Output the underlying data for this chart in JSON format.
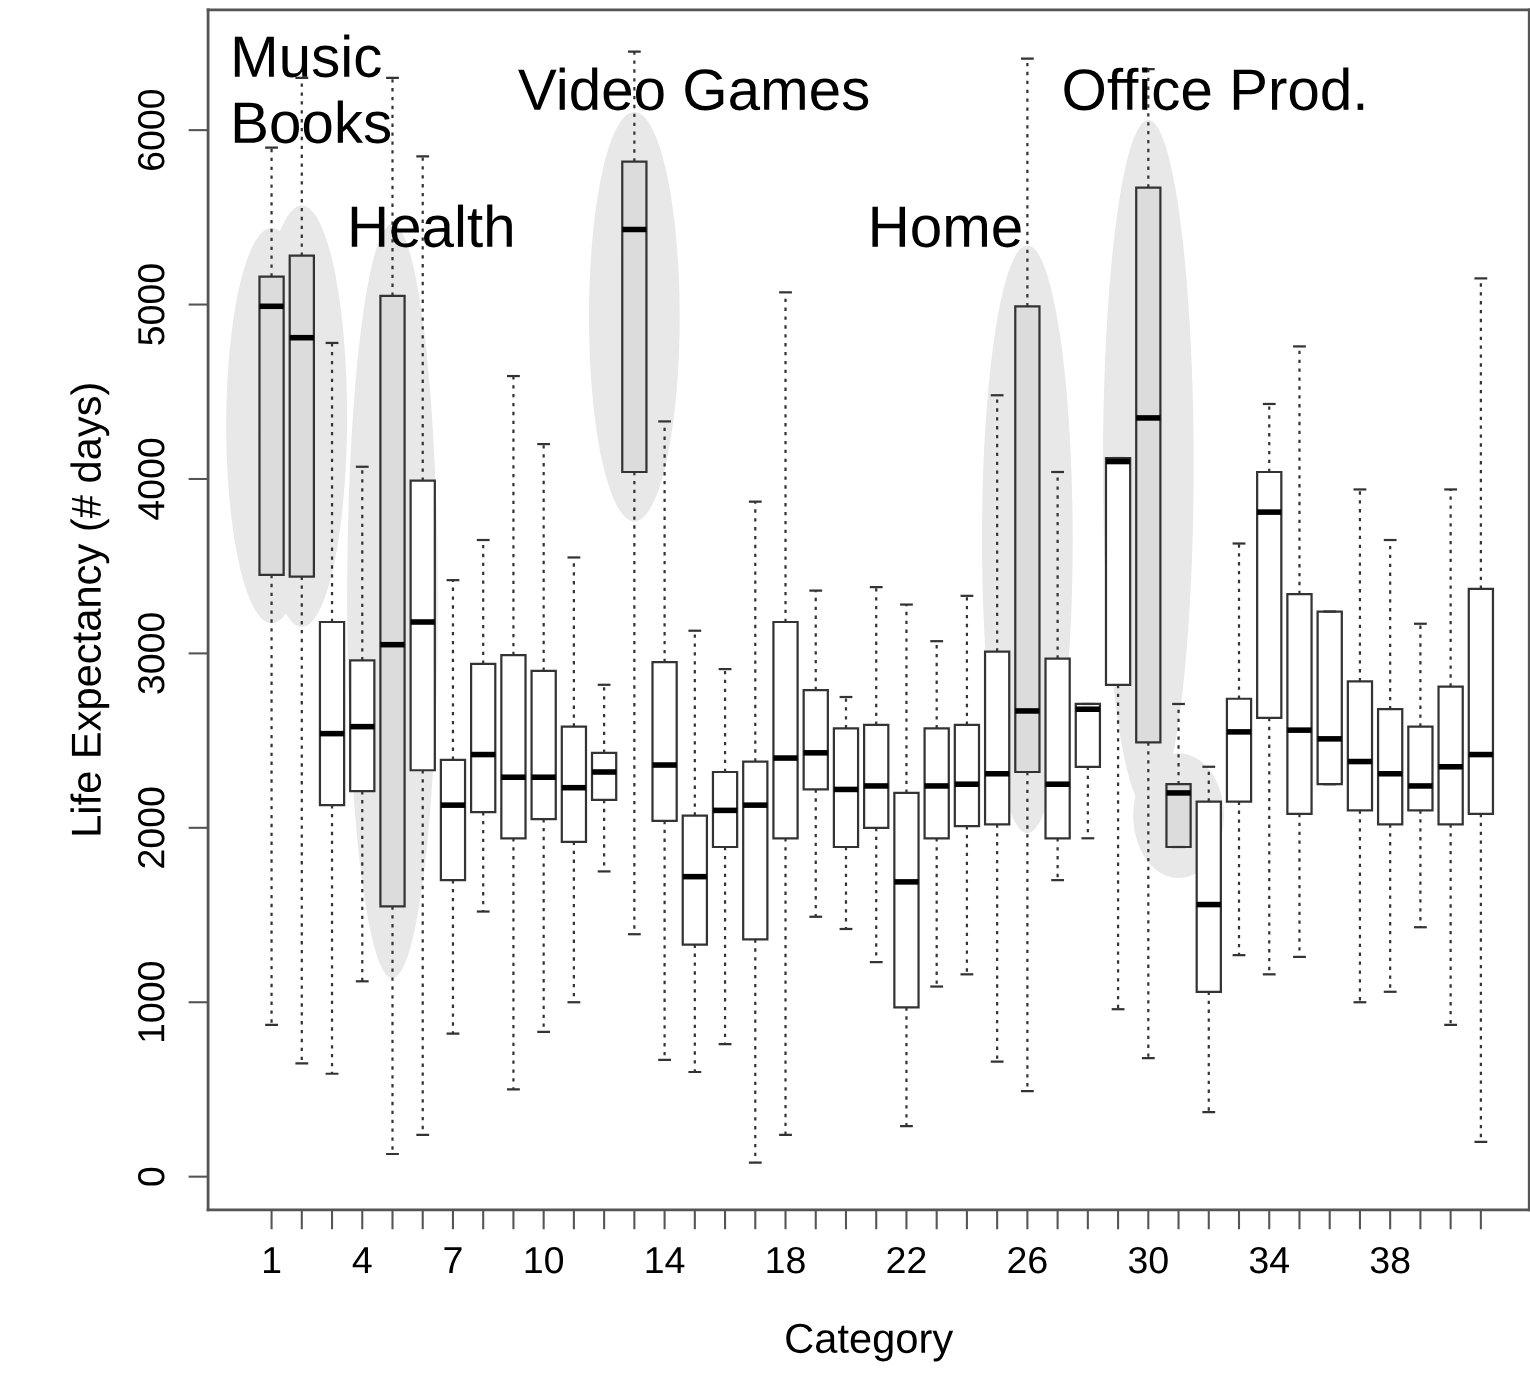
{
  "chart_data": {
    "type": "box",
    "xlabel": "Category",
    "ylabel": "Life Expectancy (# days)",
    "x": [
      1,
      2,
      3,
      4,
      5,
      6,
      7,
      8,
      9,
      10,
      11,
      12,
      13,
      14,
      15,
      16,
      17,
      18,
      19,
      20,
      21,
      22,
      23,
      24,
      25,
      26,
      27,
      28,
      29,
      30,
      31,
      32,
      33,
      34,
      35,
      36,
      37,
      38,
      39,
      40,
      41
    ],
    "xlim": [
      -1.1,
      42.6
    ],
    "xticks": [
      1,
      4,
      7,
      10,
      14,
      18,
      22,
      26,
      30,
      34,
      38
    ],
    "ylim": [
      -190,
      6690
    ],
    "yticks": [
      0,
      1000,
      2000,
      3000,
      4000,
      5000,
      6000
    ],
    "grid": false,
    "boxes": [
      {
        "low": 870,
        "q1": 3450,
        "median": 4990,
        "q3": 5160,
        "high": 5900
      },
      {
        "low": 650,
        "q1": 3440,
        "median": 4810,
        "q3": 5280,
        "high": 6300
      },
      {
        "low": 590,
        "q1": 2130,
        "median": 2540,
        "q3": 3180,
        "high": 4780
      },
      {
        "low": 1120,
        "q1": 2210,
        "median": 2580,
        "q3": 2960,
        "high": 4070
      },
      {
        "low": 130,
        "q1": 1550,
        "median": 3050,
        "q3": 5050,
        "high": 6300
      },
      {
        "low": 240,
        "q1": 2330,
        "median": 3180,
        "q3": 3990,
        "high": 5850
      },
      {
        "low": 820,
        "q1": 1700,
        "median": 2130,
        "q3": 2390,
        "high": 3420
      },
      {
        "low": 1520,
        "q1": 2090,
        "median": 2420,
        "q3": 2940,
        "high": 3650
      },
      {
        "low": 500,
        "q1": 1940,
        "median": 2290,
        "q3": 2990,
        "high": 4590
      },
      {
        "low": 830,
        "q1": 2050,
        "median": 2290,
        "q3": 2900,
        "high": 4200
      },
      {
        "low": 1000,
        "q1": 1920,
        "median": 2230,
        "q3": 2580,
        "high": 3550
      },
      {
        "low": 1750,
        "q1": 2160,
        "median": 2320,
        "q3": 2430,
        "high": 2820
      },
      {
        "low": 1390,
        "q1": 4040,
        "median": 5430,
        "q3": 5820,
        "high": 6450
      },
      {
        "low": 670,
        "q1": 2040,
        "median": 2360,
        "q3": 2950,
        "high": 4330
      },
      {
        "low": 600,
        "q1": 1330,
        "median": 1720,
        "q3": 2070,
        "high": 3130
      },
      {
        "low": 760,
        "q1": 1890,
        "median": 2100,
        "q3": 2320,
        "high": 2910
      },
      {
        "low": 80,
        "q1": 1360,
        "median": 2130,
        "q3": 2380,
        "high": 3870
      },
      {
        "low": 240,
        "q1": 1940,
        "median": 2400,
        "q3": 3180,
        "high": 5070
      },
      {
        "low": 1490,
        "q1": 2220,
        "median": 2430,
        "q3": 2790,
        "high": 3360
      },
      {
        "low": 1420,
        "q1": 1890,
        "median": 2220,
        "q3": 2570,
        "high": 2750
      },
      {
        "low": 1230,
        "q1": 2000,
        "median": 2240,
        "q3": 2590,
        "high": 3380
      },
      {
        "low": 290,
        "q1": 970,
        "median": 1690,
        "q3": 2200,
        "high": 3280
      },
      {
        "low": 1090,
        "q1": 1940,
        "median": 2240,
        "q3": 2570,
        "high": 3070
      },
      {
        "low": 1160,
        "q1": 2010,
        "median": 2250,
        "q3": 2590,
        "high": 3330
      },
      {
        "low": 660,
        "q1": 2020,
        "median": 2310,
        "q3": 3010,
        "high": 4480
      },
      {
        "low": 490,
        "q1": 2320,
        "median": 2670,
        "q3": 4990,
        "high": 6410
      },
      {
        "low": 1700,
        "q1": 1940,
        "median": 2250,
        "q3": 2970,
        "high": 4040
      },
      {
        "low": 1940,
        "q1": 2350,
        "median": 2680,
        "q3": 2710,
        "high": 2710
      },
      {
        "low": 960,
        "q1": 2820,
        "median": 4100,
        "q3": 4120,
        "high": 4120
      },
      {
        "low": 680,
        "q1": 2490,
        "median": 4350,
        "q3": 5670,
        "high": 6350
      },
      {
        "low": 1890,
        "q1": 1890,
        "median": 2200,
        "q3": 2250,
        "high": 2710
      },
      {
        "low": 370,
        "q1": 1060,
        "median": 1560,
        "q3": 2150,
        "high": 2350
      },
      {
        "low": 1270,
        "q1": 2150,
        "median": 2550,
        "q3": 2740,
        "high": 3630
      },
      {
        "low": 1160,
        "q1": 2630,
        "median": 3810,
        "q3": 4040,
        "high": 4430
      },
      {
        "low": 1260,
        "q1": 2080,
        "median": 2560,
        "q3": 3340,
        "high": 4760
      },
      {
        "low": 2250,
        "q1": 2250,
        "median": 2510,
        "q3": 3240,
        "high": 3240
      },
      {
        "low": 1000,
        "q1": 2100,
        "median": 2380,
        "q3": 2840,
        "high": 3940
      },
      {
        "low": 1060,
        "q1": 2020,
        "median": 2310,
        "q3": 2680,
        "high": 3650
      },
      {
        "low": 1430,
        "q1": 2100,
        "median": 2240,
        "q3": 2580,
        "high": 3170
      },
      {
        "low": 870,
        "q1": 2020,
        "median": 2350,
        "q3": 2810,
        "high": 3940
      },
      {
        "low": 200,
        "q1": 2080,
        "median": 2420,
        "q3": 3370,
        "high": 5150
      }
    ],
    "colors": [
      "#dcdcdc",
      "#dcdcdc",
      "#ffffff",
      "#ffffff",
      "#dcdcdc",
      "#ffffff",
      "#ffffff",
      "#ffffff",
      "#ffffff",
      "#ffffff",
      "#ffffff",
      "#ffffff",
      "#dcdcdc",
      "#ffffff",
      "#ffffff",
      "#ffffff",
      "#ffffff",
      "#ffffff",
      "#ffffff",
      "#ffffff",
      "#ffffff",
      "#ffffff",
      "#ffffff",
      "#ffffff",
      "#ffffff",
      "#dcdcdc",
      "#ffffff",
      "#ffffff",
      "#ffffff",
      "#dcdcdc",
      "#dcdcdc",
      "#ffffff",
      "#ffffff",
      "#ffffff",
      "#ffffff",
      "#ffffff",
      "#ffffff",
      "#ffffff",
      "#ffffff",
      "#ffffff",
      "#ffffff"
    ],
    "annotations": [
      "Music",
      "Books",
      "Health",
      "Video Games",
      "Home",
      "Office Prod."
    ]
  }
}
